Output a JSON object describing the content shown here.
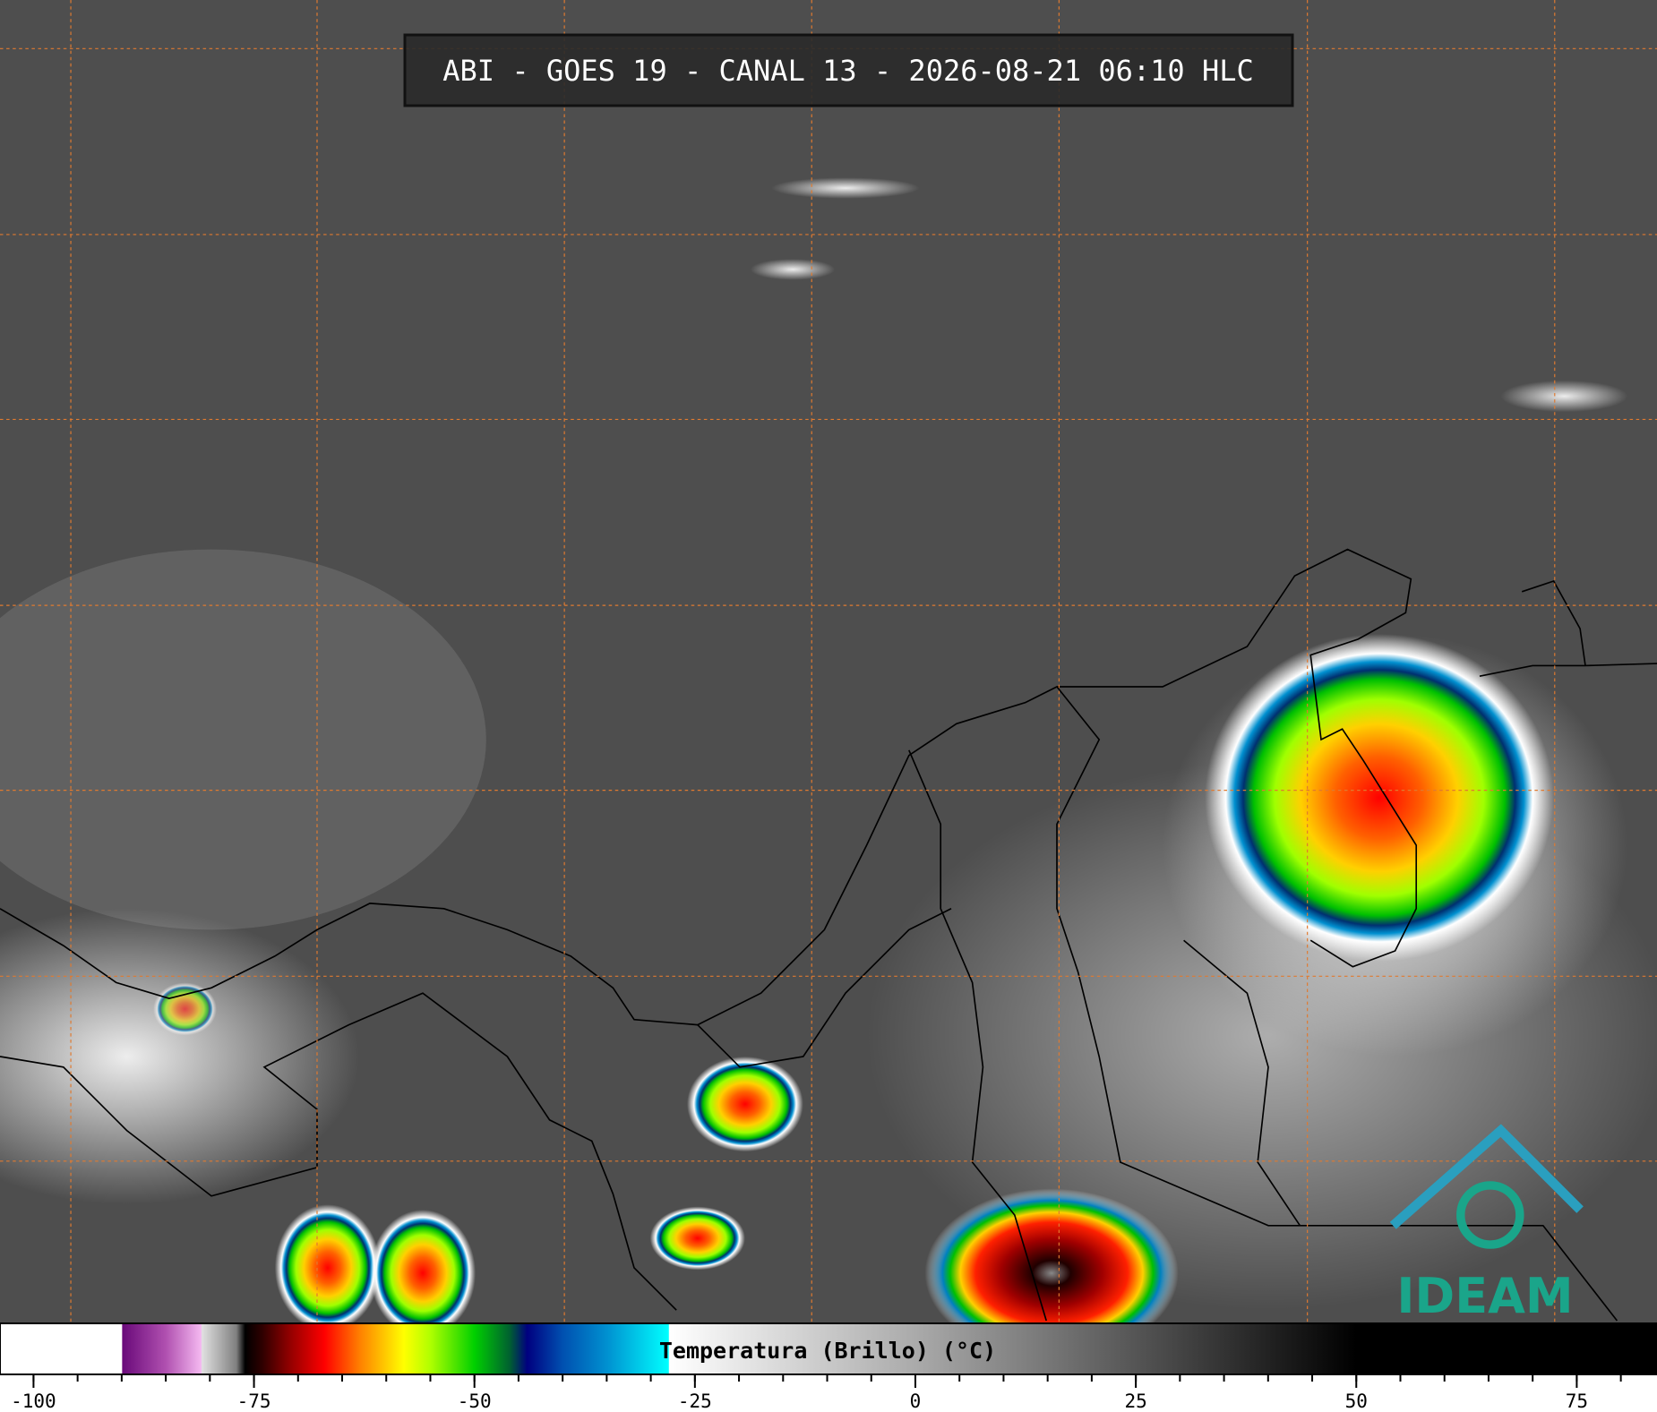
{
  "header": {
    "title": "ABI - GOES 19 - CANAL 13 - 2026-08-21 06:10 HLC"
  },
  "logo": {
    "text": "IDEAM"
  },
  "colorbar": {
    "label": "Temperatura (Brillo) (°C)",
    "xlim": [
      -103.8,
      84.1
    ],
    "ticks": [
      -100,
      -75,
      -50,
      -25,
      0,
      25,
      50,
      75
    ],
    "stops": [
      {
        "value": -103.8,
        "color": "#ffffff"
      },
      {
        "value": -90,
        "color": "#ffffff"
      },
      {
        "value": -89.9,
        "color": "#6a0a7a"
      },
      {
        "value": -85,
        "color": "#b050b0"
      },
      {
        "value": -81,
        "color": "#f4b8f0"
      },
      {
        "value": -80.9,
        "color": "#e0e0e0"
      },
      {
        "value": -77,
        "color": "#808080"
      },
      {
        "value": -76,
        "color": "#000000"
      },
      {
        "value": -74,
        "color": "#300000"
      },
      {
        "value": -71,
        "color": "#900000"
      },
      {
        "value": -67,
        "color": "#ff0000"
      },
      {
        "value": -63,
        "color": "#ff8000"
      },
      {
        "value": -58,
        "color": "#ffff00"
      },
      {
        "value": -55,
        "color": "#b0ff00"
      },
      {
        "value": -50,
        "color": "#00d000"
      },
      {
        "value": -46,
        "color": "#006030"
      },
      {
        "value": -44,
        "color": "#000080"
      },
      {
        "value": -40,
        "color": "#0050b0"
      },
      {
        "value": -35,
        "color": "#0090d0"
      },
      {
        "value": -28,
        "color": "#00ffff"
      },
      {
        "value": -27.9,
        "color": "#ffffff"
      },
      {
        "value": 0,
        "color": "#aaaaaa"
      },
      {
        "value": 25,
        "color": "#555555"
      },
      {
        "value": 50,
        "color": "#000000"
      },
      {
        "value": 84.1,
        "color": "#000000"
      }
    ]
  }
}
